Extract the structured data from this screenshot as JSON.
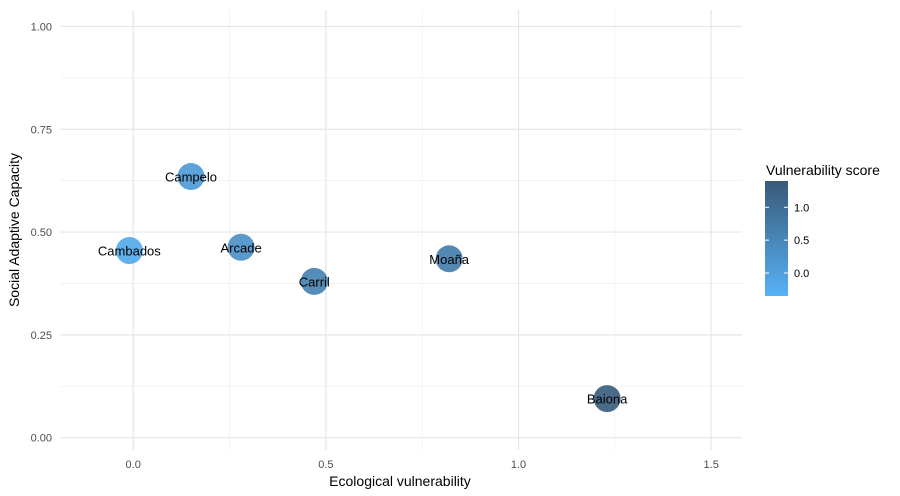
{
  "chart_data": {
    "type": "scatter",
    "xlabel": "Ecological vulnerability",
    "ylabel": "Social Adaptive Capacity",
    "xlim": [
      -0.19,
      1.58
    ],
    "ylim": [
      -0.03,
      1.04
    ],
    "x_ticks": [
      0.0,
      0.5,
      1.0,
      1.5
    ],
    "x_tick_labels": [
      "0.0",
      "0.5",
      "1.0",
      "1.5"
    ],
    "y_ticks": [
      0.0,
      0.25,
      0.5,
      0.75,
      1.0
    ],
    "y_tick_labels": [
      "0.00",
      "0.25",
      "0.50",
      "0.75",
      "1.00"
    ],
    "grid": true,
    "points": [
      {
        "label": "Campelo",
        "x": 0.15,
        "y": 0.635,
        "score": 0.1
      },
      {
        "label": "Cambados",
        "x": -0.01,
        "y": 0.455,
        "score": -0.2
      },
      {
        "label": "Arcade",
        "x": 0.28,
        "y": 0.463,
        "score": 0.3
      },
      {
        "label": "Carril",
        "x": 0.47,
        "y": 0.38,
        "score": 0.6
      },
      {
        "label": "Moaña",
        "x": 0.82,
        "y": 0.435,
        "score": 0.7
      },
      {
        "label": "Baiona",
        "x": 1.23,
        "y": 0.095,
        "score": 1.3
      }
    ],
    "legend": {
      "title": "Vulnerability score",
      "placement": "right",
      "range": [
        -0.35,
        1.4
      ],
      "ticks": [
        0.0,
        0.5,
        1.0
      ],
      "tick_labels": [
        "0.0",
        "0.5",
        "1.0"
      ],
      "color_low": "#56B1F7",
      "color_high": "#3A5A78"
    }
  }
}
